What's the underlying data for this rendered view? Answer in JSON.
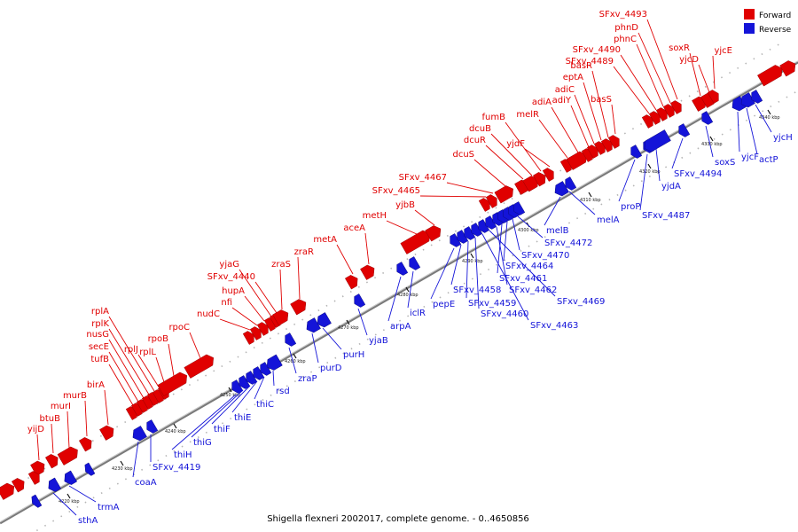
{
  "caption": "Shigella flexneri 2002017, complete genome. - 0..4650856",
  "legend": [
    {
      "label": "Forward",
      "color": "#e00000"
    },
    {
      "label": "Reverse",
      "color": "#1414d8"
    }
  ],
  "colors": {
    "forward": "#e00000",
    "reverse": "#1414d8",
    "axis": "#888888",
    "connector_fwd": "#e00000",
    "connector_rev": "#1414d8"
  },
  "ticks": [
    "4220 kbp",
    "4230 kbp",
    "4240 kbp",
    "4250 kbp",
    "4260 kbp",
    "4270 kbp",
    "4280 kbp",
    "4290 kbp",
    "4300 kbp",
    "4310 kbp",
    "4320 kbp",
    "4330 kbp",
    "4340 kbp"
  ],
  "forward_genes": [
    "yijD",
    "btuB",
    "murI",
    "murB",
    "birA",
    "tufB",
    "secE",
    "nusG",
    "rplK",
    "rplA",
    "rplJ",
    "rplL",
    "rpoB",
    "rpoC",
    "nudC",
    "nfi",
    "hupA",
    "yjaG",
    "SFxv_4440",
    "zraS",
    "zraR",
    "metA",
    "aceA",
    "metH",
    "yjbB",
    "SFxv_4465",
    "SFxv_4467",
    "dcuS",
    "dcuR",
    "dcuB",
    "fumB",
    "yjdF",
    "melR",
    "adiA",
    "adiY",
    "adiC",
    "eptA",
    "basR",
    "basS",
    "SFxv_4489",
    "SFxv_4490",
    "phnC",
    "phnD",
    "SFxv_4493",
    "soxR",
    "yjcD",
    "yjcE"
  ],
  "reverse_genes": [
    "sthA",
    "trmA",
    "coaA",
    "SFxv_4419",
    "thiH",
    "thiG",
    "thiF",
    "thiE",
    "thiC",
    "rsd",
    "zraP",
    "purD",
    "purH",
    "yjaB",
    "arpA",
    "iclR",
    "pepE",
    "SFxv_4458",
    "SFxv_4459",
    "SFxv_4460",
    "SFxv_4463",
    "SFxv_4469",
    "SFxv_4462",
    "SFxv_4461",
    "SFxv_4464",
    "SFxv_4470",
    "SFxv_4472",
    "melB",
    "melA",
    "proP",
    "SFxv_4487",
    "yjdA",
    "SFxv_4494",
    "soxS",
    "yjcF",
    "actP",
    "yjcH"
  ]
}
